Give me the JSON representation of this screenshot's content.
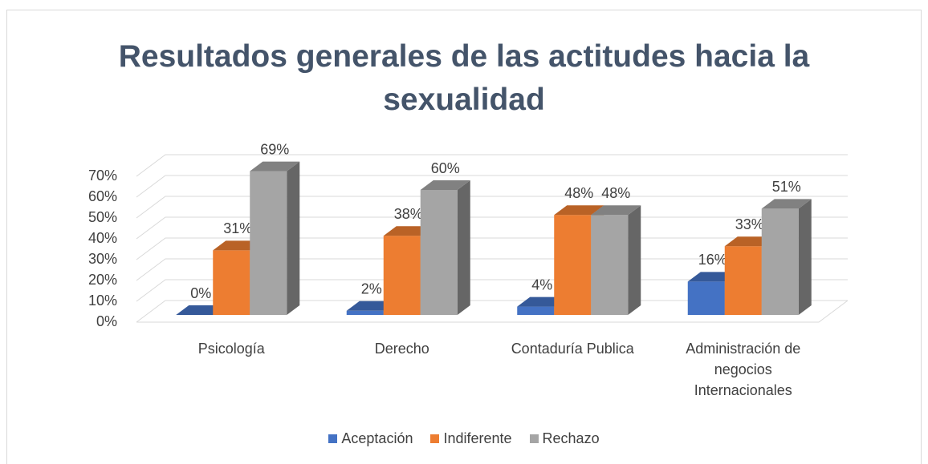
{
  "chart_data": {
    "type": "bar3d",
    "title": "Resultados generales de las actitudes hacia la sexualidad",
    "categories": [
      "Psicología",
      "Derecho",
      "Contaduría Publica",
      "Administración de negocios Internacionales"
    ],
    "series": [
      {
        "name": "Aceptación",
        "color": "#4472c4",
        "values": [
          0,
          2,
          4,
          16
        ],
        "value_labels": [
          "0%",
          "2%",
          "4%",
          "16%"
        ]
      },
      {
        "name": "Indiferente",
        "color": "#ed7d31",
        "values": [
          31,
          38,
          48,
          33
        ],
        "value_labels": [
          "31%",
          "38%",
          "48%",
          "33%"
        ]
      },
      {
        "name": "Rechazo",
        "color": "#a5a5a5",
        "values": [
          69,
          60,
          48,
          51
        ],
        "value_labels": [
          "69%",
          "60%",
          "48%",
          "51%"
        ]
      }
    ],
    "ylim": [
      0,
      70
    ],
    "yticks": [
      {
        "value": 0,
        "label": "0%"
      },
      {
        "value": 10,
        "label": "10%"
      },
      {
        "value": 20,
        "label": "20%"
      },
      {
        "value": 30,
        "label": "30%"
      },
      {
        "value": 40,
        "label": "40%"
      },
      {
        "value": 50,
        "label": "50%"
      },
      {
        "value": 60,
        "label": "60%"
      },
      {
        "value": 70,
        "label": "70%"
      }
    ],
    "grid": true,
    "legend": "bottom"
  }
}
